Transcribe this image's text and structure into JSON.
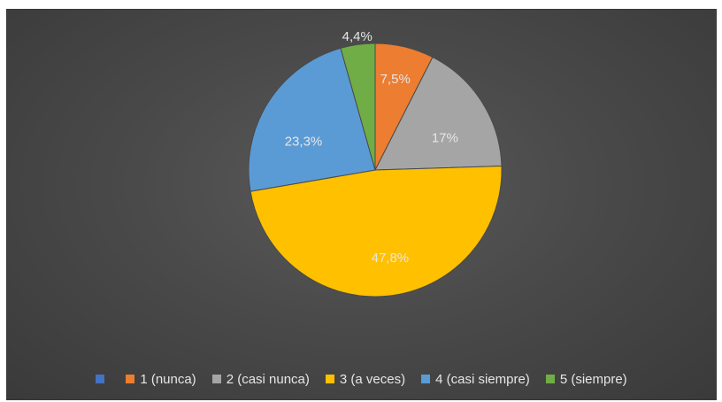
{
  "chart_data": {
    "type": "pie",
    "title": "",
    "categories": [
      "",
      "1 (nunca)",
      "2 (casi nunca)",
      "3 (a veces)",
      "4 (casi siempre)",
      "5 (siempre)"
    ],
    "values": [
      0,
      7.5,
      17,
      47.8,
      23.3,
      4.4
    ],
    "value_labels": [
      "",
      "7,5%",
      "17%",
      "47,8%",
      "23,3%",
      "4,4%"
    ],
    "colors": [
      "#4472C4",
      "#ED7D31",
      "#A5A5A5",
      "#FFC000",
      "#5B9BD5",
      "#70AD47"
    ],
    "start_angle_deg": 0,
    "direction": "clockwise",
    "legend_position": "bottom",
    "background_color": "#4a4a4a",
    "label_color": "#e6e6e6"
  }
}
